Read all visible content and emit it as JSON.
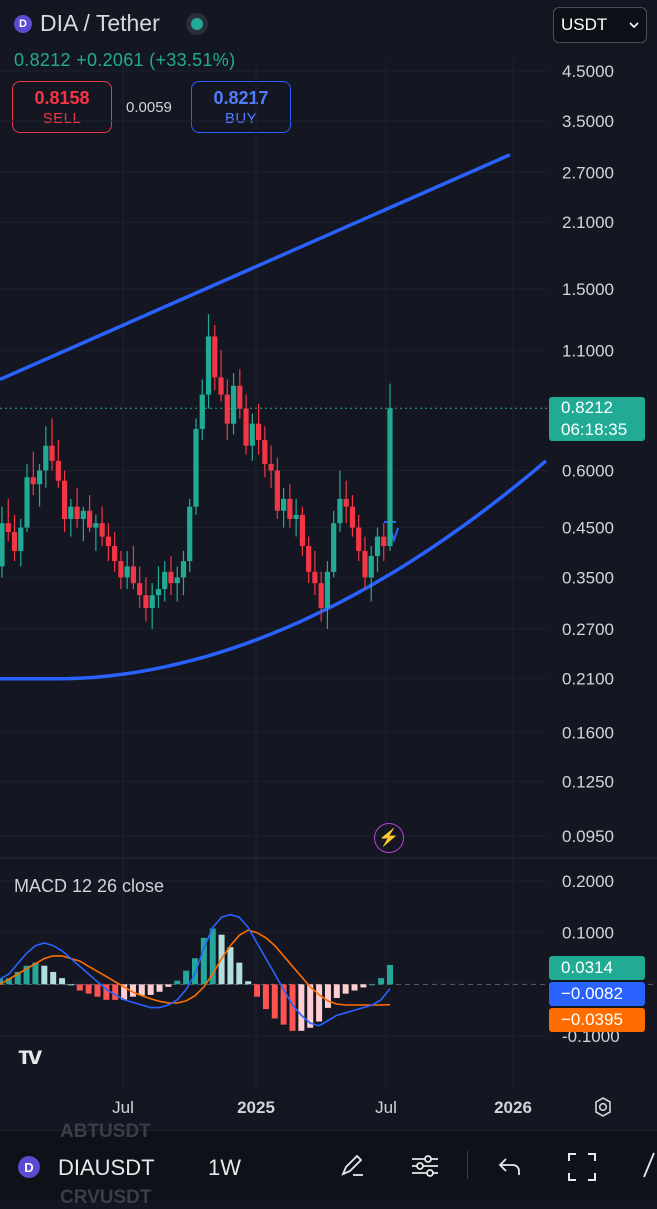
{
  "header": {
    "pair_title": "DIA / Tether",
    "last_price": "0.8212",
    "change_abs": "+0.2061",
    "change_pct": "(+33.51%)",
    "sell_price": "0.8158",
    "sell_label": "SELL",
    "buy_price": "0.8217",
    "buy_label": "BUY",
    "spread": "0.0059",
    "currency": "USDT",
    "coin_icon": "dia-coin-icon",
    "status_icon": "market-open-dot-icon"
  },
  "price_axis": {
    "labels": [
      "4.5000",
      "3.5000",
      "2.7000",
      "2.1000",
      "1.5000",
      "1.1000",
      "0.6000",
      "0.4500",
      "0.3500",
      "0.2700",
      "0.2100",
      "0.1600",
      "0.1250",
      "0.0950"
    ],
    "scale": "log",
    "current_price_tag": "0.8212",
    "countdown_tag": "06:18:35"
  },
  "macd": {
    "title": "MACD 12 26 close",
    "axis_labels": [
      "0.2000",
      "0.1000",
      "-0.1000"
    ],
    "histogram_tag": "0.0314",
    "macd_tag": "−0.0082",
    "signal_tag": "−0.0395"
  },
  "time_axis": {
    "labels": [
      "Jul",
      "2025",
      "Jul",
      "2026"
    ]
  },
  "bottom_bar": {
    "symbol": "DIAUSDT",
    "interval": "1W",
    "ghost_top": "ABTUSDT",
    "ghost_bottom": "CRVUSDT"
  },
  "colors": {
    "up": "#22ab94",
    "down": "#f23645",
    "trendline": "#2962ff",
    "macd_line": "#2962ff",
    "signal_line": "#ff6d00",
    "background": "#141722"
  },
  "chart_data": [
    {
      "type": "candlestick",
      "title": "DIA / Tether",
      "interval": "1W",
      "scale": "log",
      "ylim": [
        0.085,
        5.2
      ],
      "x_labels": [
        "Jul",
        "2025",
        "Jul",
        "2026"
      ],
      "last": 0.8212,
      "candles": [
        {
          "o": 0.37,
          "h": 0.5,
          "l": 0.35,
          "c": 0.46
        },
        {
          "o": 0.46,
          "h": 0.52,
          "l": 0.42,
          "c": 0.44
        },
        {
          "o": 0.44,
          "h": 0.48,
          "l": 0.38,
          "c": 0.4
        },
        {
          "o": 0.4,
          "h": 0.47,
          "l": 0.37,
          "c": 0.45
        },
        {
          "o": 0.45,
          "h": 0.62,
          "l": 0.44,
          "c": 0.58
        },
        {
          "o": 0.58,
          "h": 0.66,
          "l": 0.53,
          "c": 0.56
        },
        {
          "o": 0.56,
          "h": 0.62,
          "l": 0.5,
          "c": 0.6
        },
        {
          "o": 0.6,
          "h": 0.75,
          "l": 0.55,
          "c": 0.68
        },
        {
          "o": 0.68,
          "h": 0.78,
          "l": 0.6,
          "c": 0.63
        },
        {
          "o": 0.63,
          "h": 0.7,
          "l": 0.55,
          "c": 0.57
        },
        {
          "o": 0.57,
          "h": 0.6,
          "l": 0.44,
          "c": 0.47
        },
        {
          "o": 0.47,
          "h": 0.52,
          "l": 0.43,
          "c": 0.5
        },
        {
          "o": 0.5,
          "h": 0.55,
          "l": 0.45,
          "c": 0.47
        },
        {
          "o": 0.47,
          "h": 0.5,
          "l": 0.42,
          "c": 0.49
        },
        {
          "o": 0.49,
          "h": 0.53,
          "l": 0.44,
          "c": 0.45
        },
        {
          "o": 0.45,
          "h": 0.48,
          "l": 0.4,
          "c": 0.46
        },
        {
          "o": 0.46,
          "h": 0.5,
          "l": 0.41,
          "c": 0.43
        },
        {
          "o": 0.43,
          "h": 0.46,
          "l": 0.38,
          "c": 0.41
        },
        {
          "o": 0.41,
          "h": 0.44,
          "l": 0.36,
          "c": 0.38
        },
        {
          "o": 0.38,
          "h": 0.4,
          "l": 0.33,
          "c": 0.35
        },
        {
          "o": 0.35,
          "h": 0.4,
          "l": 0.33,
          "c": 0.37
        },
        {
          "o": 0.37,
          "h": 0.41,
          "l": 0.33,
          "c": 0.34
        },
        {
          "o": 0.34,
          "h": 0.37,
          "l": 0.3,
          "c": 0.32
        },
        {
          "o": 0.32,
          "h": 0.35,
          "l": 0.28,
          "c": 0.3
        },
        {
          "o": 0.3,
          "h": 0.34,
          "l": 0.27,
          "c": 0.32
        },
        {
          "o": 0.32,
          "h": 0.37,
          "l": 0.3,
          "c": 0.33
        },
        {
          "o": 0.33,
          "h": 0.38,
          "l": 0.31,
          "c": 0.36
        },
        {
          "o": 0.36,
          "h": 0.39,
          "l": 0.32,
          "c": 0.34
        },
        {
          "o": 0.34,
          "h": 0.37,
          "l": 0.31,
          "c": 0.35
        },
        {
          "o": 0.35,
          "h": 0.4,
          "l": 0.32,
          "c": 0.38
        },
        {
          "o": 0.38,
          "h": 0.52,
          "l": 0.36,
          "c": 0.5
        },
        {
          "o": 0.5,
          "h": 0.78,
          "l": 0.48,
          "c": 0.74
        },
        {
          "o": 0.74,
          "h": 0.95,
          "l": 0.7,
          "c": 0.88
        },
        {
          "o": 0.88,
          "h": 1.32,
          "l": 0.82,
          "c": 1.18
        },
        {
          "o": 1.18,
          "h": 1.25,
          "l": 0.9,
          "c": 0.96
        },
        {
          "o": 0.96,
          "h": 1.1,
          "l": 0.85,
          "c": 0.88
        },
        {
          "o": 0.88,
          "h": 0.95,
          "l": 0.7,
          "c": 0.76
        },
        {
          "o": 0.76,
          "h": 0.98,
          "l": 0.72,
          "c": 0.92
        },
        {
          "o": 0.92,
          "h": 1.0,
          "l": 0.78,
          "c": 0.82
        },
        {
          "o": 0.82,
          "h": 0.88,
          "l": 0.65,
          "c": 0.68
        },
        {
          "o": 0.68,
          "h": 0.8,
          "l": 0.63,
          "c": 0.76
        },
        {
          "o": 0.76,
          "h": 0.84,
          "l": 0.65,
          "c": 0.7
        },
        {
          "o": 0.7,
          "h": 0.75,
          "l": 0.58,
          "c": 0.62
        },
        {
          "o": 0.62,
          "h": 0.68,
          "l": 0.55,
          "c": 0.6
        },
        {
          "o": 0.6,
          "h": 0.64,
          "l": 0.47,
          "c": 0.49
        },
        {
          "o": 0.49,
          "h": 0.55,
          "l": 0.45,
          "c": 0.52
        },
        {
          "o": 0.52,
          "h": 0.56,
          "l": 0.45,
          "c": 0.47
        },
        {
          "o": 0.47,
          "h": 0.52,
          "l": 0.43,
          "c": 0.48
        },
        {
          "o": 0.48,
          "h": 0.5,
          "l": 0.39,
          "c": 0.41
        },
        {
          "o": 0.41,
          "h": 0.43,
          "l": 0.34,
          "c": 0.36
        },
        {
          "o": 0.36,
          "h": 0.4,
          "l": 0.32,
          "c": 0.34
        },
        {
          "o": 0.34,
          "h": 0.36,
          "l": 0.28,
          "c": 0.3
        },
        {
          "o": 0.3,
          "h": 0.38,
          "l": 0.27,
          "c": 0.36
        },
        {
          "o": 0.36,
          "h": 0.49,
          "l": 0.35,
          "c": 0.46
        },
        {
          "o": 0.46,
          "h": 0.6,
          "l": 0.44,
          "c": 0.52
        },
        {
          "o": 0.52,
          "h": 0.57,
          "l": 0.46,
          "c": 0.5
        },
        {
          "o": 0.5,
          "h": 0.53,
          "l": 0.43,
          "c": 0.45
        },
        {
          "o": 0.45,
          "h": 0.48,
          "l": 0.38,
          "c": 0.4
        },
        {
          "o": 0.4,
          "h": 0.43,
          "l": 0.33,
          "c": 0.35
        },
        {
          "o": 0.35,
          "h": 0.41,
          "l": 0.31,
          "c": 0.39
        },
        {
          "o": 0.39,
          "h": 0.45,
          "l": 0.36,
          "c": 0.43
        },
        {
          "o": 0.43,
          "h": 0.46,
          "l": 0.38,
          "c": 0.41
        },
        {
          "o": 0.41,
          "h": 0.93,
          "l": 0.4,
          "c": 0.8212
        }
      ]
    },
    {
      "type": "line",
      "title": "MACD 12 26 close",
      "ylim": [
        -0.15,
        0.22
      ],
      "series": [
        {
          "values": [
            0.01,
            0.02,
            0.04,
            0.06,
            0.075,
            0.08,
            0.075,
            0.065,
            0.05,
            0.035,
            0.02,
            0.005,
            -0.01,
            -0.02,
            -0.03,
            -0.035,
            -0.04,
            -0.045,
            -0.045,
            -0.04,
            -0.03,
            -0.01,
            0.02,
            0.07,
            0.11,
            0.13,
            0.135,
            0.13,
            0.11,
            0.08,
            0.05,
            0.02,
            -0.01,
            -0.04,
            -0.06,
            -0.075,
            -0.08,
            -0.07,
            -0.06,
            -0.055,
            -0.05,
            -0.045,
            -0.04,
            -0.03,
            -0.0082
          ]
        },
        {
          "values": [
            0.0,
            0.01,
            0.02,
            0.03,
            0.04,
            0.05,
            0.055,
            0.055,
            0.05,
            0.045,
            0.035,
            0.025,
            0.015,
            0.005,
            -0.005,
            -0.015,
            -0.022,
            -0.028,
            -0.033,
            -0.036,
            -0.036,
            -0.032,
            -0.022,
            -0.005,
            0.02,
            0.05,
            0.075,
            0.095,
            0.105,
            0.1,
            0.09,
            0.075,
            0.055,
            0.035,
            0.015,
            -0.005,
            -0.02,
            -0.032,
            -0.038,
            -0.04,
            -0.04,
            -0.04,
            -0.04,
            -0.04,
            -0.0395
          ]
        }
      ]
    }
  ]
}
